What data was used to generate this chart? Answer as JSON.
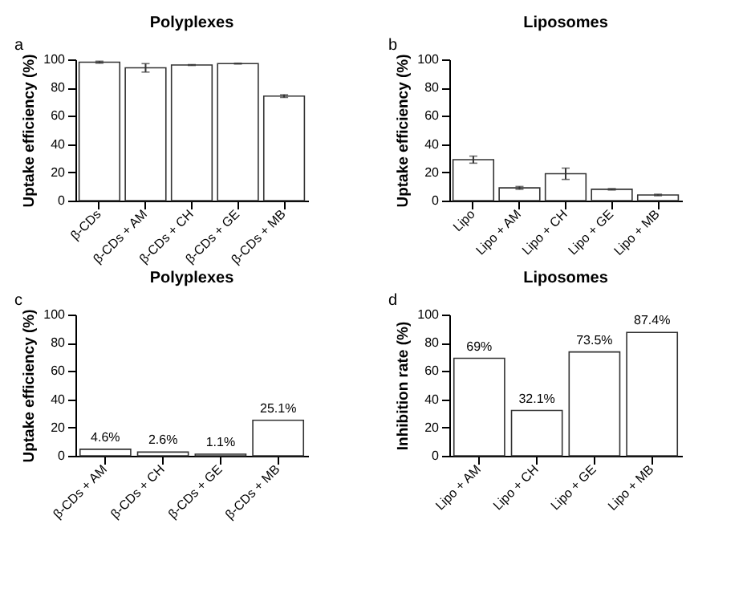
{
  "chart_data": [
    {
      "type": "bar",
      "title": "Polyplexes",
      "ylabel": "Uptake efficiency (%)",
      "annotations": [
        "a"
      ],
      "categories": [
        "β-CDs",
        "β-CDs + AM",
        "β-CDs + CH",
        "β-CDs + GE",
        "β-CDs + MB"
      ],
      "values": [
        98,
        94,
        96,
        97,
        74
      ],
      "errors": [
        0.7,
        3,
        0.3,
        0.3,
        1
      ],
      "color": "#ffffff",
      "ylim": [
        0,
        100
      ],
      "yticks": [
        0,
        20,
        40,
        60,
        80,
        100
      ],
      "grid": false
    },
    {
      "type": "bar",
      "title": "Liposomes",
      "ylabel": "Uptake efficiency (%)",
      "annotations": [
        "b"
      ],
      "categories": [
        "Lipo",
        "Lipo + AM",
        "Lipo + CH",
        "Lipo + GE",
        "Lipo + MB"
      ],
      "values": [
        29,
        9,
        19,
        8,
        4
      ],
      "errors": [
        2.5,
        1,
        4,
        0.5,
        0.5
      ],
      "color": "#ffffff",
      "ylim": [
        0,
        100
      ],
      "yticks": [
        0,
        20,
        40,
        60,
        80,
        100
      ],
      "grid": false
    },
    {
      "type": "bar",
      "title": "Polyplexes",
      "ylabel": "Uptake efficiency (%)",
      "annotations": [
        "c"
      ],
      "categories": [
        "β-CDs + AM",
        "β-CDs + CH",
        "β-CDs + GE",
        "β-CDs + MB"
      ],
      "values": [
        4.6,
        2.6,
        1.1,
        25.1
      ],
      "value_labels": [
        "4.6%",
        "2.6%",
        "1.1%",
        "25.1%"
      ],
      "color": "#ffffff",
      "ylim": [
        0,
        100
      ],
      "yticks": [
        0,
        20,
        40,
        60,
        80,
        100
      ],
      "grid": false
    },
    {
      "type": "bar",
      "title": "Liposomes",
      "ylabel": "Inhibition rate (%)",
      "annotations": [
        "d"
      ],
      "categories": [
        "Lipo + AM",
        "Lipo + CH",
        "Lipo + GE",
        "Lipo + MB"
      ],
      "values": [
        69,
        32.1,
        73.5,
        87.4
      ],
      "value_labels": [
        "69%",
        "32.1%",
        "73.5%",
        "87.4%"
      ],
      "color": "#ffffff",
      "ylim": [
        0,
        100
      ],
      "yticks": [
        0,
        20,
        40,
        60,
        80,
        100
      ],
      "grid": false
    }
  ]
}
